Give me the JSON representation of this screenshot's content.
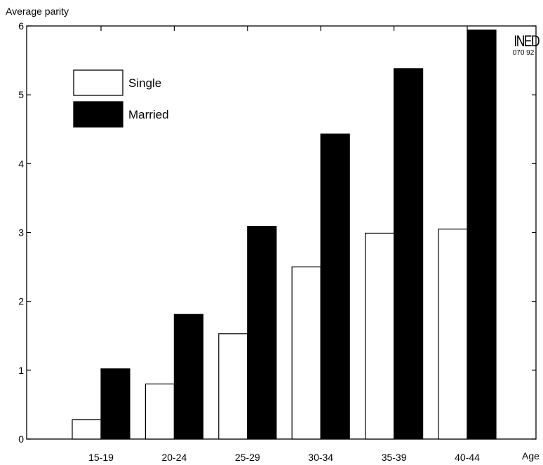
{
  "chart_data": {
    "type": "bar",
    "ylabel": "Average parity",
    "xlabel": "Age",
    "categories": [
      "15-19",
      "20-24",
      "25-29",
      "30-34",
      "35-39",
      "40-44"
    ],
    "series": [
      {
        "name": "Single",
        "color": "#ffffff",
        "values": [
          0.28,
          0.8,
          1.53,
          2.5,
          2.99,
          3.05
        ]
      },
      {
        "name": "Married",
        "color": "#000000",
        "values": [
          1.02,
          1.81,
          3.09,
          4.43,
          5.38,
          5.94
        ]
      }
    ],
    "ylim": [
      0,
      6
    ],
    "yticks": [
      "0",
      "1",
      "2",
      "3",
      "4",
      "5",
      "6"
    ],
    "legend": "top-left",
    "grid": false
  },
  "logo": {
    "text": "INED",
    "code": "070 92"
  }
}
